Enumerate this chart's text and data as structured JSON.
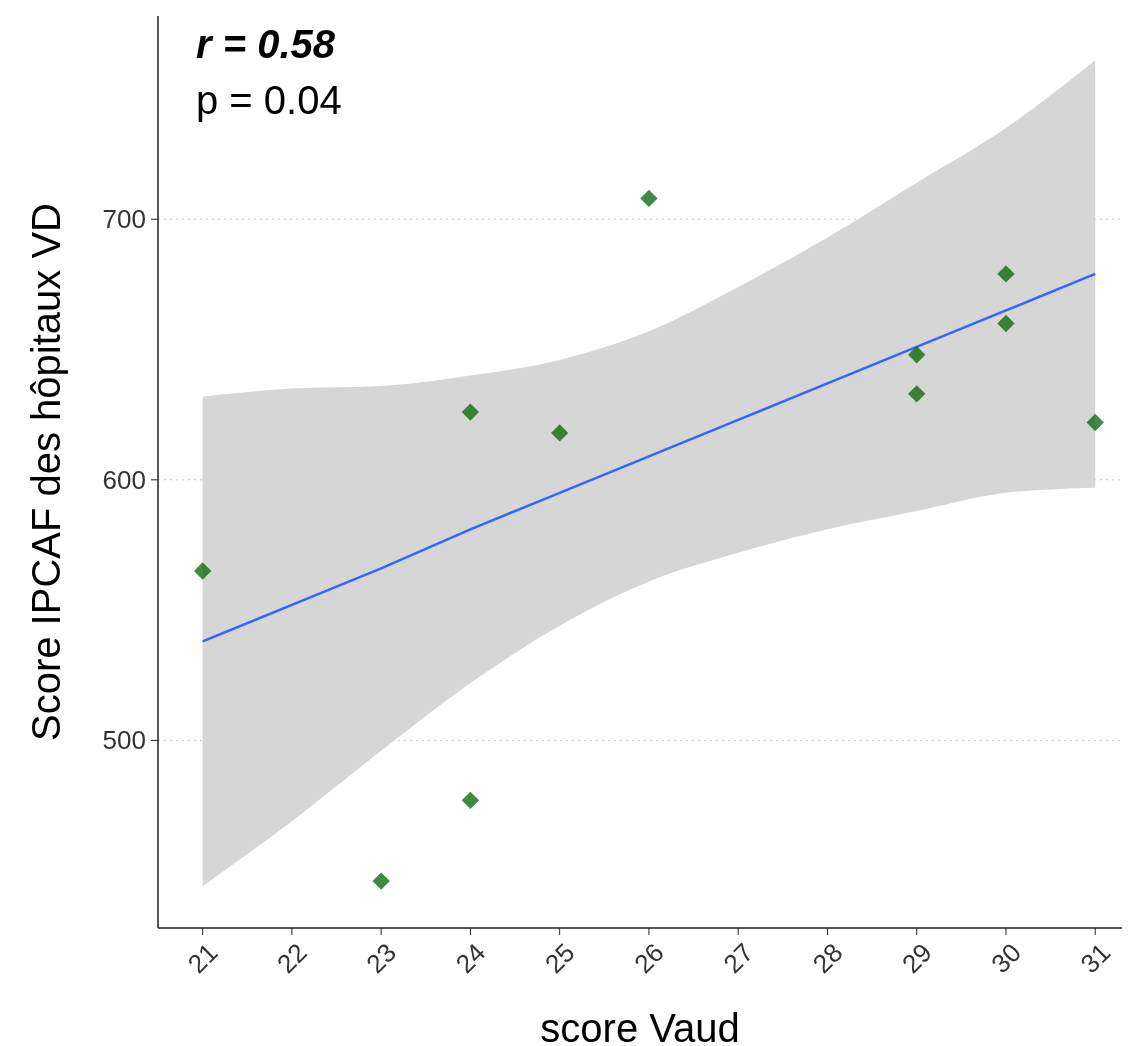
{
  "chart_data": {
    "type": "scatter",
    "xlabel": "score Vaud",
    "ylabel": "Score IPCAF des hôpitaux VD",
    "annotations": [
      "r = 0.58",
      "p = 0.04"
    ],
    "xlim": [
      20.5,
      31.3
    ],
    "xticks": [
      21,
      22,
      23,
      24,
      25,
      26,
      27,
      28,
      29,
      30,
      31
    ],
    "ylim": [
      428,
      778
    ],
    "yticks": [
      500,
      600,
      700
    ],
    "grid": "y",
    "series": [
      {
        "type": "line",
        "color": "#3366ff",
        "x": [
          21,
          22,
          23,
          24,
          25,
          26,
          27,
          28,
          29,
          30,
          31
        ],
        "values": [
          538,
          552,
          566,
          581,
          595,
          609,
          623,
          637,
          651,
          665,
          679
        ],
        "lower": [
          444,
          469,
          496,
          522,
          544,
          561,
          572,
          581,
          588,
          595,
          597
        ],
        "upper": [
          632,
          635,
          636,
          640,
          646,
          657,
          674,
          693,
          714,
          735,
          761
        ]
      },
      {
        "marker": "diamond",
        "color": "#006400",
        "x": [
          21,
          23,
          24,
          24,
          25,
          26,
          29,
          29,
          30,
          30,
          31
        ],
        "values": [
          565,
          446,
          477,
          626,
          618,
          708,
          648,
          633,
          679,
          660,
          622
        ]
      }
    ]
  }
}
